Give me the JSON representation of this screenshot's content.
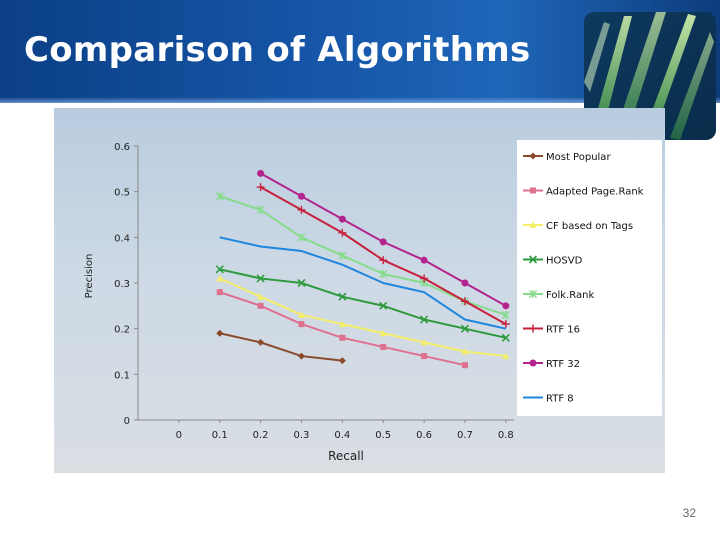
{
  "slide": {
    "title": "Comparison of Algorithms",
    "page_number": "32"
  },
  "colors": {
    "header_dark": "#0b3f86",
    "header_light": "#1f66b8",
    "title_text": "#ffffff",
    "plot_background": "#ffffff"
  },
  "chart_data": {
    "type": "line",
    "title": "",
    "xlabel": "Recall",
    "ylabel": "Precision",
    "x_ticks": [
      "0",
      "0.1",
      "0.2",
      "0.3",
      "0.4",
      "0.5",
      "0.6",
      "0.7",
      "0.8"
    ],
    "y_ticks": [
      "0",
      "0.1",
      "0.2",
      "0.3",
      "0.4",
      "0.5",
      "0.6"
    ],
    "xlim": [
      0,
      0.8
    ],
    "ylim": [
      0,
      0.6
    ],
    "grid": false,
    "legend_position": "right",
    "series": [
      {
        "name": "Most Popular",
        "color": "#8b4a2b",
        "marker": "diamond",
        "x": [
          0.1,
          0.2,
          0.3,
          0.4
        ],
        "y": [
          0.19,
          0.17,
          0.14,
          0.13
        ]
      },
      {
        "name": "Adapted Page.Rank",
        "color": "#e0708f",
        "marker": "square",
        "x": [
          0.1,
          0.2,
          0.3,
          0.4,
          0.5,
          0.6,
          0.7
        ],
        "y": [
          0.28,
          0.25,
          0.21,
          0.18,
          0.16,
          0.14,
          0.12
        ]
      },
      {
        "name": "CF based on Tags",
        "color": "#f4ee6a",
        "marker": "triangle",
        "x": [
          0.1,
          0.2,
          0.3,
          0.4,
          0.5,
          0.6,
          0.7,
          0.8
        ],
        "y": [
          0.31,
          0.27,
          0.23,
          0.21,
          0.19,
          0.17,
          0.15,
          0.14
        ]
      },
      {
        "name": "HOSVD",
        "color": "#2e9a3e",
        "marker": "x",
        "x": [
          0.1,
          0.2,
          0.3,
          0.4,
          0.5,
          0.6,
          0.7,
          0.8
        ],
        "y": [
          0.33,
          0.31,
          0.3,
          0.27,
          0.25,
          0.22,
          0.2,
          0.18
        ]
      },
      {
        "name": "Folk.Rank",
        "color": "#86dc8c",
        "marker": "star",
        "x": [
          0.1,
          0.2,
          0.3,
          0.4,
          0.5,
          0.6,
          0.7,
          0.8
        ],
        "y": [
          0.49,
          0.46,
          0.4,
          0.36,
          0.32,
          0.3,
          0.26,
          0.23
        ]
      },
      {
        "name": "RTF 16",
        "color": "#c6203c",
        "marker": "plus",
        "x": [
          0.2,
          0.3,
          0.4,
          0.5,
          0.6,
          0.7,
          0.8
        ],
        "y": [
          0.51,
          0.46,
          0.41,
          0.35,
          0.31,
          0.26,
          0.21
        ]
      },
      {
        "name": "RTF 32",
        "color": "#b3248f",
        "marker": "circle",
        "x": [
          0.2,
          0.3,
          0.4,
          0.5,
          0.6,
          0.7,
          0.8
        ],
        "y": [
          0.54,
          0.49,
          0.44,
          0.39,
          0.35,
          0.3,
          0.25
        ]
      },
      {
        "name": "RTF 8",
        "color": "#1f86e0",
        "marker": "none",
        "x": [
          0.1,
          0.2,
          0.3,
          0.4,
          0.5,
          0.6,
          0.7,
          0.8
        ],
        "y": [
          0.4,
          0.38,
          0.37,
          0.34,
          0.3,
          0.28,
          0.22,
          0.2
        ]
      }
    ]
  }
}
